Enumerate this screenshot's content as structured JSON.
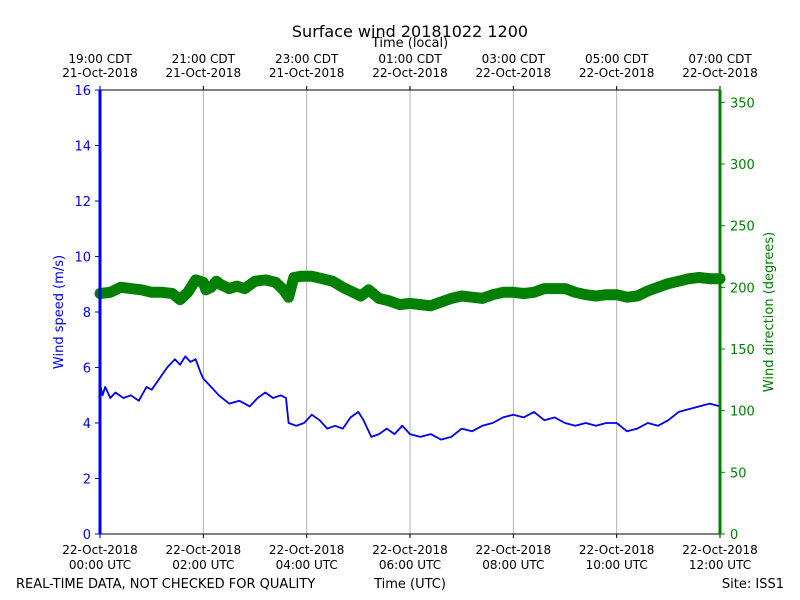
{
  "chart_data": {
    "type": "line",
    "title": "Surface wind 20181022 1200",
    "top_axis_label": "Time (local)",
    "top_ticks": [
      {
        "hour": 0,
        "line1": "19:00 CDT",
        "line2": "21-Oct-2018"
      },
      {
        "hour": 2,
        "line1": "21:00 CDT",
        "line2": "21-Oct-2018"
      },
      {
        "hour": 4,
        "line1": "23:00 CDT",
        "line2": "21-Oct-2018"
      },
      {
        "hour": 6,
        "line1": "01:00 CDT",
        "line2": "22-Oct-2018"
      },
      {
        "hour": 8,
        "line1": "03:00 CDT",
        "line2": "22-Oct-2018"
      },
      {
        "hour": 10,
        "line1": "05:00 CDT",
        "line2": "22-Oct-2018"
      },
      {
        "hour": 12,
        "line1": "07:00 CDT",
        "line2": "22-Oct-2018"
      }
    ],
    "bottom_ticks": [
      {
        "hour": 0,
        "line1": "22-Oct-2018",
        "line2": "00:00 UTC"
      },
      {
        "hour": 2,
        "line1": "22-Oct-2018",
        "line2": "02:00 UTC"
      },
      {
        "hour": 4,
        "line1": "22-Oct-2018",
        "line2": "04:00 UTC"
      },
      {
        "hour": 6,
        "line1": "22-Oct-2018",
        "line2": "06:00 UTC"
      },
      {
        "hour": 8,
        "line1": "22-Oct-2018",
        "line2": "08:00 UTC"
      },
      {
        "hour": 10,
        "line1": "22-Oct-2018",
        "line2": "10:00 UTC"
      },
      {
        "hour": 12,
        "line1": "22-Oct-2018",
        "line2": "12:00 UTC"
      }
    ],
    "xlabel": "Time (UTC)",
    "xlim": [
      0,
      12
    ],
    "grid": "vertical at major ticks",
    "y_left": {
      "label": "Wind speed (m/s)",
      "lim": [
        0,
        16
      ],
      "ticks": [
        0,
        2,
        4,
        6,
        8,
        10,
        12,
        14,
        16
      ],
      "color": "#0000ee"
    },
    "y_right": {
      "label": "Wind direction (degrees)",
      "lim": [
        0,
        360
      ],
      "ticks": [
        0,
        50,
        100,
        150,
        200,
        250,
        300,
        350
      ],
      "color": "#008000"
    },
    "series": [
      {
        "name": "Wind speed",
        "axis": "left",
        "style": "line",
        "color": "#0000ee",
        "x": [
          0,
          0.05,
          0.1,
          0.2,
          0.3,
          0.45,
          0.6,
          0.75,
          0.9,
          1.0,
          1.15,
          1.3,
          1.45,
          1.55,
          1.65,
          1.75,
          1.85,
          1.95,
          2.0,
          2.1,
          2.2,
          2.3,
          2.5,
          2.7,
          2.9,
          3.05,
          3.2,
          3.35,
          3.5,
          3.6,
          3.65,
          3.8,
          3.95,
          4.1,
          4.25,
          4.4,
          4.55,
          4.7,
          4.85,
          5.0,
          5.1,
          5.25,
          5.4,
          5.55,
          5.7,
          5.85,
          6.0,
          6.2,
          6.4,
          6.6,
          6.8,
          7.0,
          7.2,
          7.4,
          7.6,
          7.8,
          8.0,
          8.2,
          8.4,
          8.6,
          8.8,
          9.0,
          9.2,
          9.4,
          9.6,
          9.8,
          10.0,
          10.2,
          10.4,
          10.6,
          10.8,
          11.0,
          11.2,
          11.4,
          11.6,
          11.8,
          12.0
        ],
        "y": [
          5.4,
          5.0,
          5.3,
          4.9,
          5.1,
          4.9,
          5.0,
          4.8,
          5.3,
          5.2,
          5.6,
          6.0,
          6.3,
          6.1,
          6.4,
          6.2,
          6.3,
          5.8,
          5.6,
          5.4,
          5.2,
          5.0,
          4.7,
          4.8,
          4.6,
          4.9,
          5.1,
          4.9,
          5.0,
          4.9,
          4.0,
          3.9,
          4.0,
          4.3,
          4.1,
          3.8,
          3.9,
          3.8,
          4.2,
          4.4,
          4.1,
          3.5,
          3.6,
          3.8,
          3.6,
          3.9,
          3.6,
          3.5,
          3.6,
          3.4,
          3.5,
          3.8,
          3.7,
          3.9,
          4.0,
          4.2,
          4.3,
          4.2,
          4.4,
          4.1,
          4.2,
          4.0,
          3.9,
          4.0,
          3.9,
          4.0,
          4.0,
          3.7,
          3.8,
          4.0,
          3.9,
          4.1,
          4.4,
          4.5,
          4.6,
          4.7,
          4.6
        ]
      },
      {
        "name": "Wind direction",
        "axis": "right",
        "style": "thick-markers",
        "color": "#008000",
        "x": [
          0,
          0.2,
          0.4,
          0.6,
          0.8,
          1.0,
          1.2,
          1.4,
          1.55,
          1.7,
          1.85,
          2.0,
          2.05,
          2.15,
          2.25,
          2.35,
          2.5,
          2.65,
          2.8,
          3.0,
          3.2,
          3.4,
          3.55,
          3.65,
          3.75,
          3.9,
          4.1,
          4.3,
          4.5,
          4.7,
          4.9,
          5.05,
          5.2,
          5.4,
          5.6,
          5.8,
          6.0,
          6.2,
          6.4,
          6.6,
          6.8,
          7.0,
          7.2,
          7.4,
          7.6,
          7.8,
          8.0,
          8.2,
          8.4,
          8.6,
          8.8,
          9.0,
          9.2,
          9.4,
          9.6,
          9.8,
          10.0,
          10.2,
          10.4,
          10.6,
          10.8,
          11.0,
          11.2,
          11.4,
          11.6,
          11.8,
          12.0
        ],
        "y": [
          195,
          196,
          200,
          199,
          198,
          196,
          196,
          195,
          190,
          196,
          206,
          204,
          198,
          200,
          205,
          202,
          199,
          201,
          199,
          205,
          206,
          204,
          198,
          192,
          208,
          209,
          209,
          207,
          205,
          200,
          196,
          193,
          198,
          191,
          189,
          186,
          187,
          186,
          185,
          188,
          191,
          193,
          192,
          191,
          194,
          196,
          196,
          195,
          196,
          199,
          199,
          199,
          196,
          194,
          193,
          194,
          194,
          192,
          193,
          197,
          200,
          203,
          205,
          207,
          208,
          207,
          207
        ]
      }
    ]
  },
  "footer": {
    "left": "REAL-TIME DATA, NOT CHECKED FOR QUALITY",
    "center": "Time (UTC)",
    "right": "Site: ISS1"
  }
}
